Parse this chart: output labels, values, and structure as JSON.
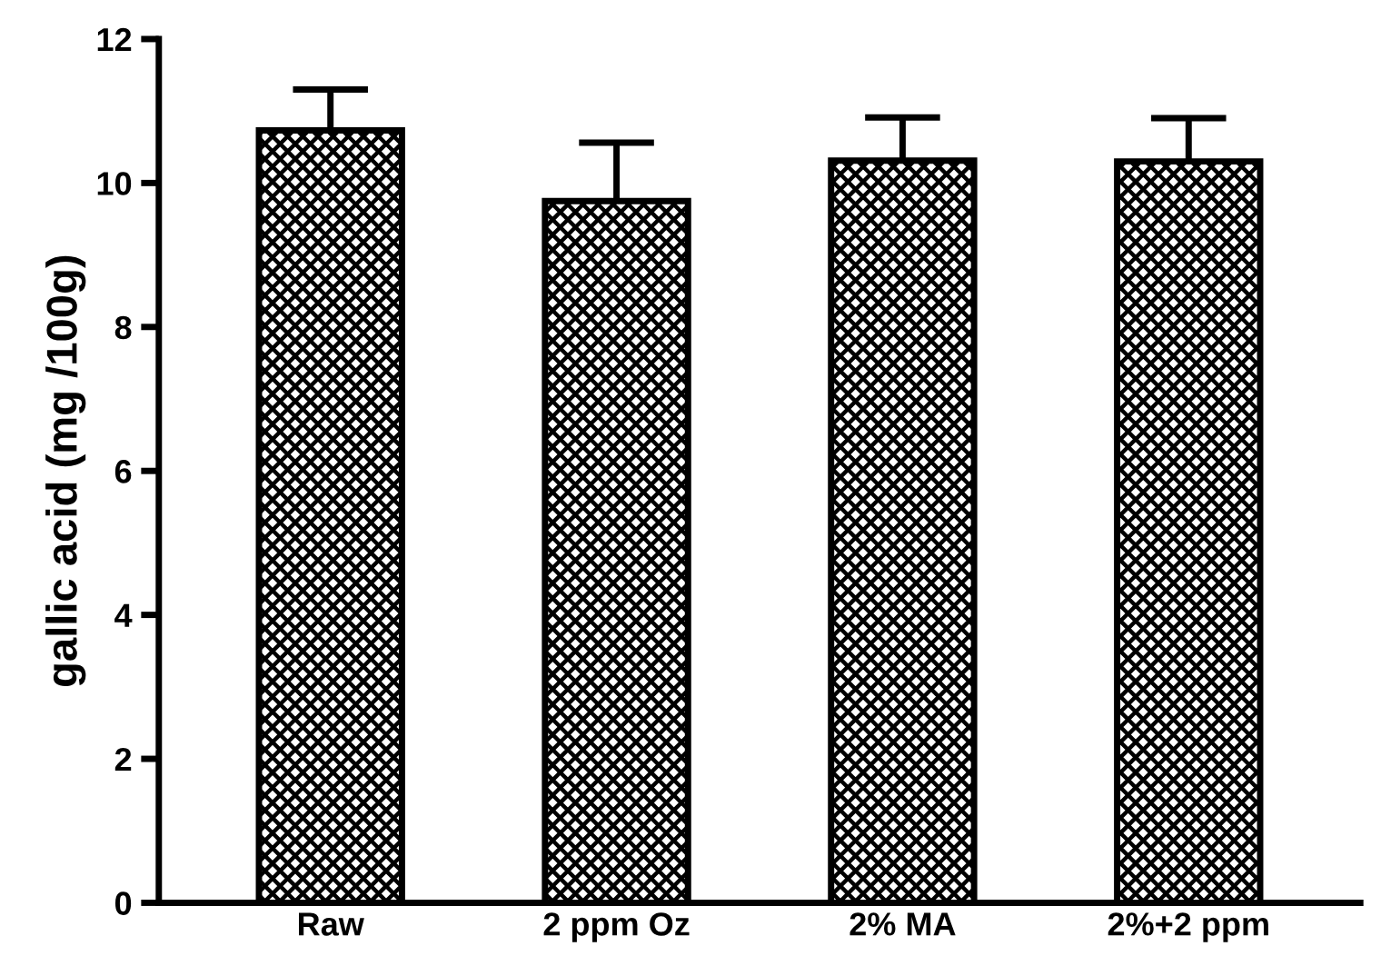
{
  "chart_data": {
    "type": "bar",
    "ylabel": "gallic acid (mg /100g)",
    "categories": [
      "Raw",
      "2 ppm Oz",
      "2% MA",
      "2%+2 ppm"
    ],
    "values": [
      10.73,
      9.75,
      10.31,
      10.3
    ],
    "errors": [
      [
        10.73,
        11.3
      ],
      [
        9.75,
        10.56
      ],
      [
        10.31,
        10.91
      ],
      [
        10.3,
        10.9
      ]
    ],
    "color": "#000000",
    "ylim": [
      0,
      12
    ],
    "yticks": [
      0,
      2,
      4,
      6,
      8,
      10,
      12
    ],
    "grid": false,
    "legend": false
  }
}
